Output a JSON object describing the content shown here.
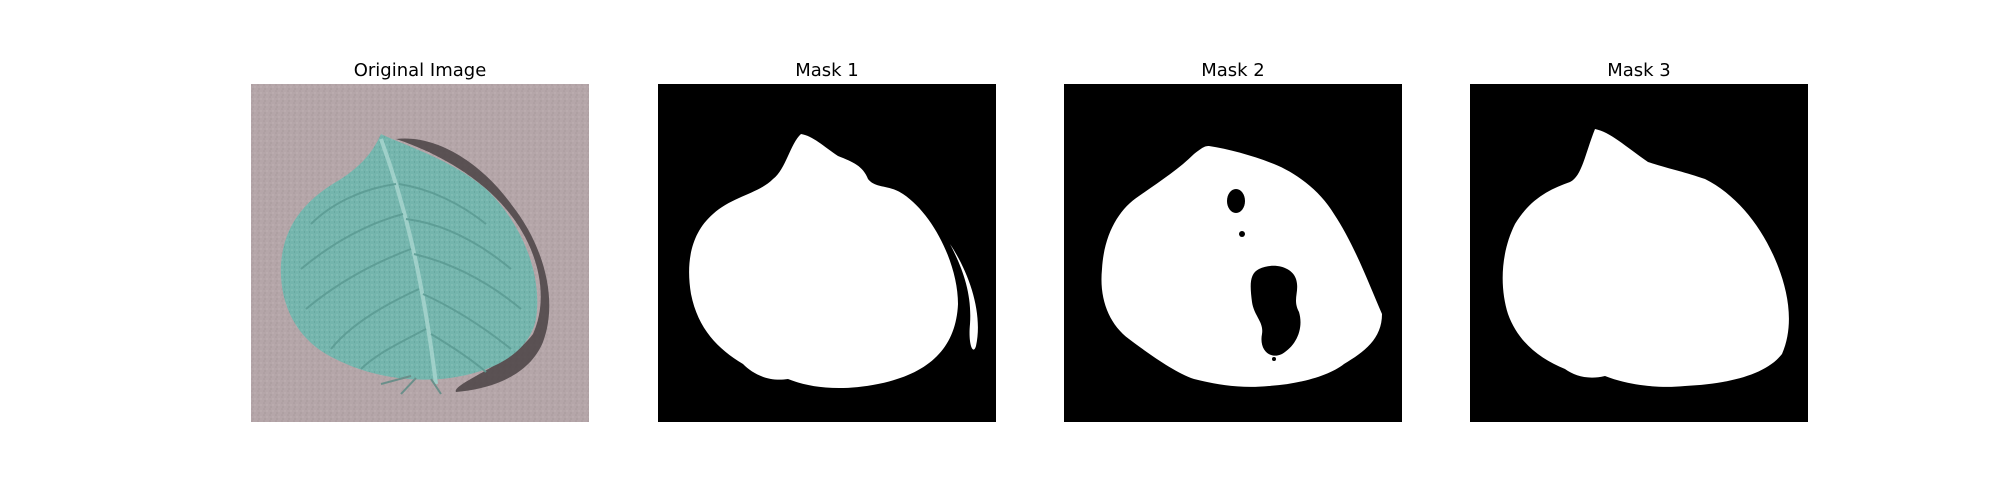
{
  "panels": [
    {
      "title": "Original Image",
      "icon": "leaf-photo"
    },
    {
      "title": "Mask 1",
      "icon": "leaf-mask"
    },
    {
      "title": "Mask 2",
      "icon": "leaf-mask-with-holes"
    },
    {
      "title": "Mask 3",
      "icon": "leaf-mask"
    }
  ],
  "colors": {
    "background": "#ffffff",
    "mask_foreground": "#ffffff",
    "mask_background": "#000000",
    "leaf": "#74b5ad",
    "ground": "#b5a6a9"
  }
}
